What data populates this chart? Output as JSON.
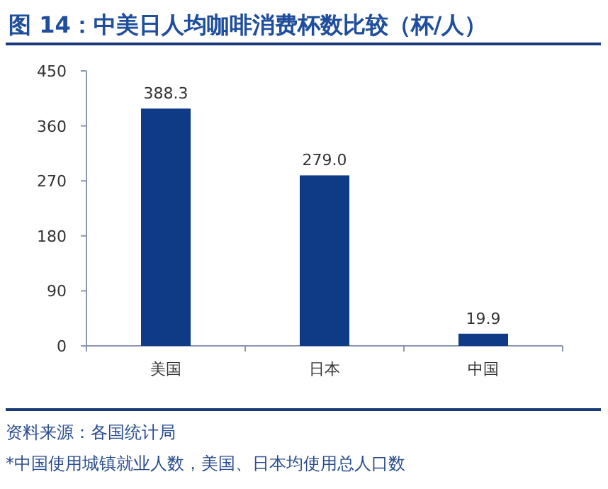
{
  "chart_data": {
    "type": "bar",
    "title": "图 14：中美日人均咖啡消费杯数比较（杯/人）",
    "categories": [
      "美国",
      "日本",
      "中国"
    ],
    "values": [
      388.3,
      279.0,
      19.9
    ],
    "value_labels": [
      "388.3",
      "279.0",
      "19.9"
    ],
    "color": "#0e3a86",
    "ylim": [
      0,
      450
    ],
    "yticks": [
      0,
      90,
      180,
      270,
      360,
      450
    ],
    "annotations": [
      "资料来源：各国统计局",
      "*中国使用城镇就业人数，美国、日本均使用总人口数"
    ]
  }
}
